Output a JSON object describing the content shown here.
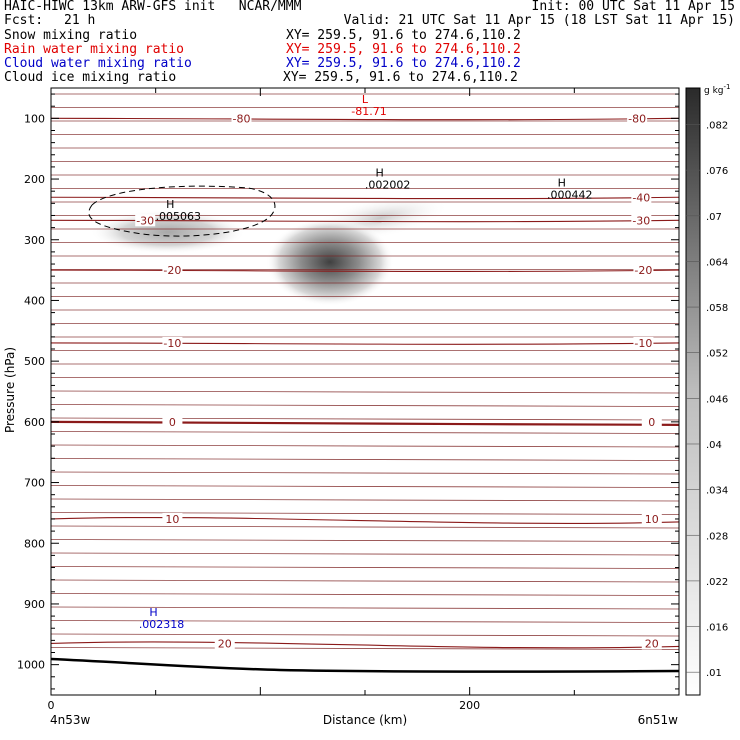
{
  "header": {
    "line1_left": "HAIC-HIWC 13km ARW-GFS init   NCAR/MMM",
    "line1_right": "Init: 00 UTC Sat 11 Apr 15",
    "fcst_label": "Fcst:",
    "fcst_value": "21 h",
    "valid": "Valid: 21 UTC Sat 11 Apr 15 (18 LST Sat 11 Apr 15)",
    "fields": [
      {
        "name": "Snow mixing ratio",
        "xy": "XY= 259.5, 91.6 to 274.6,110.2",
        "color": "#000000"
      },
      {
        "name": "Rain water mixing ratio",
        "xy": "XY= 259.5, 91.6 to 274.6,110.2",
        "color": "#e00000"
      },
      {
        "name": "Cloud water mixing ratio",
        "xy": "XY= 259.5, 91.6 to 274.6,110.2",
        "color": "#0000c8"
      },
      {
        "name": "Cloud ice mixing ratio",
        "xy": "XY= 259.5, 91.6 to 274.6,110.2",
        "color": "#000000"
      }
    ]
  },
  "chart_data": {
    "type": "cross-section",
    "xlabel": "Distance (km)",
    "ylabel": "Pressure (hPa)",
    "xlim": [
      0,
      300
    ],
    "ylim": [
      1050,
      50
    ],
    "x_ticks": [
      {
        "v": 0,
        "label": "0"
      },
      {
        "v": 200,
        "label": "200"
      }
    ],
    "y_ticks": [
      100,
      200,
      300,
      400,
      500,
      600,
      700,
      800,
      900,
      1000
    ],
    "x_endpoints": {
      "left": "4n53w",
      "right": "6n51w"
    },
    "contour_color": "#8b1a1a",
    "temperature_contours": [
      {
        "label": "-80",
        "p": 100,
        "label_x": [
          91,
          280
        ]
      },
      {
        "label": "-40",
        "p": 230,
        "label_x": [
          282
        ]
      },
      {
        "label": "-30",
        "p": 268,
        "label_x": [
          45,
          282
        ]
      },
      {
        "label": "-20",
        "p": 350,
        "label_x": [
          58,
          283
        ]
      },
      {
        "label": "-10",
        "p": 470,
        "label_x": [
          58,
          283
        ]
      },
      {
        "label": "0",
        "p": 600,
        "label_x": [
          58,
          287
        ],
        "bold": true
      },
      {
        "label": "10",
        "p": 760,
        "label_x": [
          58,
          287
        ]
      },
      {
        "label": "20",
        "p": 965,
        "label_x": [
          83,
          287
        ]
      }
    ],
    "annotations": [
      {
        "type": "L",
        "label": "L",
        "value": "-81.71",
        "x": 150,
        "p": 75,
        "color": "#e00000"
      },
      {
        "type": "H",
        "label": "H",
        "value": ".002002",
        "x": 157,
        "p": 196,
        "color": "#000000"
      },
      {
        "type": "H",
        "label": "H",
        "value": ".000442",
        "x": 244,
        "p": 212,
        "color": "#000000"
      },
      {
        "type": "H",
        "label": "H",
        "value": ".005063",
        "x": 57,
        "p": 248,
        "color": "#000000"
      },
      {
        "type": "H",
        "label": "H",
        "value": ".002318",
        "x": 49,
        "p": 920,
        "color": "#0000c8"
      }
    ],
    "shading": [
      {
        "field": "Snow mixing ratio",
        "center_x": 57,
        "center_p": 255,
        "max": 0.04
      },
      {
        "field": "Cloud ice mixing ratio",
        "center_x": 145,
        "center_p": 335,
        "max": 0.082
      }
    ],
    "colorbar": {
      "unit": "g kg",
      "unit_exp": "-1",
      "levels": [
        ".01",
        ".016",
        ".022",
        ".028",
        ".034",
        ".04",
        ".046",
        ".052",
        ".058",
        ".064",
        ".07",
        ".076",
        ".082"
      ]
    }
  }
}
